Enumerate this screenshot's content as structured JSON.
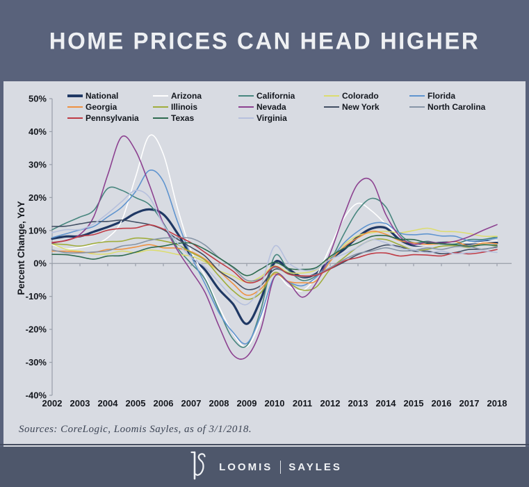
{
  "header": {
    "title": "HOME PRICES CAN HEAD HIGHER"
  },
  "colors": {
    "header_bg": "#59627b",
    "panel_bg": "#d8dbe2",
    "footer_bg": "#4e576b",
    "axis_line": "#989ea9",
    "tick_text": "#14171d",
    "title_text": "#eef0f3",
    "source_text": "#3c4454",
    "logo_text": "#f0f2f5"
  },
  "source_note": "Sources: CoreLogic, Loomis Sayles, as of 3/1/2018.",
  "footer": {
    "brand_left": "LOOMIS",
    "brand_right": "SAYLES",
    "logo": "ls-monogram"
  },
  "legend": {
    "columns": [
      [
        "National",
        "Georgia",
        "Pennsylvania"
      ],
      [
        "Arizona",
        "Illinois",
        "Texas"
      ],
      [
        "California",
        "Nevada",
        "Virginia"
      ],
      [
        "Colorado",
        "New York"
      ],
      [
        "Florida",
        "North Carolina"
      ]
    ]
  },
  "chart_data": {
    "type": "line",
    "title": "HOME PRICES CAN HEAD HIGHER",
    "xlabel": "",
    "ylabel": "Percent Change, YoY",
    "ylim": [
      -40,
      50
    ],
    "y_tick_labels": [
      "50%",
      "40%",
      "30%",
      "20%",
      "10%",
      "0%",
      "-10%",
      "-20%",
      "-30%",
      "-40%"
    ],
    "x_tick_labels": [
      "2002",
      "2003",
      "2004",
      "2005",
      "2006",
      "2007",
      "2008",
      "2009",
      "2010",
      "2011",
      "2012",
      "2013",
      "2014",
      "2015",
      "2016",
      "2017",
      "2018"
    ],
    "grid": false,
    "legend_position": "top",
    "x": [
      2002,
      2002.5,
      2003,
      2003.5,
      2004,
      2004.5,
      2005,
      2005.5,
      2006,
      2006.5,
      2007,
      2007.5,
      2008,
      2008.5,
      2009,
      2009.5,
      2010,
      2010.5,
      2011,
      2011.5,
      2012,
      2012.5,
      2013,
      2013.5,
      2014,
      2014.5,
      2015,
      2015.5,
      2016,
      2016.5,
      2017,
      2017.5,
      2018
    ],
    "series": [
      {
        "name": "National",
        "color": "#1f3864",
        "width": 3.2,
        "values": [
          7.5,
          8,
          8.5,
          9.5,
          11,
          13,
          15,
          16.5,
          15,
          9,
          2.5,
          -2,
          -8,
          -12,
          -18.5,
          -11,
          0.5,
          -2,
          -4,
          -3,
          1,
          4.5,
          8,
          10.5,
          11,
          7,
          5.5,
          6,
          6,
          6.5,
          6,
          6.5,
          6.5
        ]
      },
      {
        "name": "Arizona",
        "color": "#ffffff",
        "width": 1.6,
        "values": [
          5.5,
          4.5,
          5,
          5.5,
          8,
          13,
          26,
          39,
          33,
          17,
          4,
          -4,
          -13,
          -21,
          -25.5,
          -17,
          -4,
          -7,
          -8,
          -4,
          5,
          14,
          18,
          16,
          12,
          8,
          6,
          5.5,
          6,
          6.5,
          6,
          6.5,
          7
        ]
      },
      {
        "name": "California",
        "color": "#47867e",
        "width": 1.6,
        "values": [
          10,
          12.5,
          14,
          16,
          23,
          22,
          20,
          18,
          12,
          5,
          0,
          -5,
          -14,
          -23,
          -25,
          -14,
          2,
          -2,
          -5,
          -4,
          1,
          9,
          16,
          20,
          17,
          9,
          6.5,
          6.5,
          6,
          6,
          7,
          7.5,
          8
        ]
      },
      {
        "name": "Colorado",
        "color": "#dcdc6e",
        "width": 1.6,
        "values": [
          6,
          4.5,
          3.5,
          3,
          3,
          3.5,
          3.5,
          4,
          3.5,
          3,
          2,
          0.5,
          -2,
          -4,
          -5.5,
          -4,
          -1,
          -2.5,
          -3,
          -2,
          2,
          5.5,
          8.5,
          9.5,
          9.5,
          9.5,
          10,
          10.5,
          10,
          9.5,
          9,
          8.5,
          8
        ]
      },
      {
        "name": "Florida",
        "color": "#5f94cf",
        "width": 1.6,
        "values": [
          8,
          9,
          10,
          11.5,
          14,
          17,
          22,
          28,
          25,
          13,
          2,
          -6,
          -15,
          -21,
          -24,
          -16,
          -4,
          -5.5,
          -7,
          -4,
          1,
          6,
          10,
          12,
          12,
          9.5,
          8.5,
          9,
          8.5,
          8,
          7,
          7,
          7.5
        ]
      },
      {
        "name": "Georgia",
        "color": "#ee9140",
        "width": 1.6,
        "values": [
          4,
          3.5,
          3.5,
          3.5,
          4,
          4.5,
          5,
          5.5,
          5,
          4.5,
          3.5,
          1.5,
          -2.5,
          -6,
          -9.5,
          -8,
          -3,
          -5.5,
          -6,
          -5,
          0.5,
          5,
          8,
          9.5,
          9,
          7,
          6,
          6,
          6,
          6.5,
          5.5,
          6,
          6
        ]
      },
      {
        "name": "Illinois",
        "color": "#a0ad3c",
        "width": 1.6,
        "values": [
          6,
          5.5,
          5.5,
          6,
          6.5,
          7,
          7.5,
          7.5,
          7,
          5.5,
          3.5,
          1,
          -4,
          -8,
          -11,
          -9,
          -2.5,
          -6,
          -8,
          -7,
          -2,
          2,
          5,
          7,
          7.5,
          5.5,
          4,
          4.5,
          5,
          5.5,
          5,
          5.5,
          5.5
        ]
      },
      {
        "name": "Nevada",
        "color": "#8c4190",
        "width": 1.6,
        "values": [
          6,
          7,
          9,
          14,
          27,
          38.5,
          34,
          24,
          12,
          4,
          -2,
          -9,
          -19,
          -27.5,
          -28.5,
          -20,
          -4,
          -6,
          -10,
          -6,
          3,
          15,
          24,
          25,
          15,
          8,
          6,
          6.5,
          6,
          7,
          8,
          10,
          12
        ]
      },
      {
        "name": "New York",
        "color": "#414e63",
        "width": 1.6,
        "values": [
          11,
          11.5,
          12,
          12.5,
          13,
          13,
          12.5,
          12,
          10,
          7.5,
          5,
          2,
          -2,
          -5,
          -8,
          -6.5,
          -2,
          -3,
          -4,
          -3.5,
          -1.5,
          0.5,
          2.5,
          4.5,
          5.5,
          5,
          4,
          3.5,
          3,
          3.5,
          4,
          4.5,
          5
        ]
      },
      {
        "name": "North Carolina",
        "color": "#8694a6",
        "width": 1.6,
        "values": [
          4,
          3.5,
          3,
          3.5,
          4,
          5,
          6,
          7,
          7.5,
          8,
          7.5,
          5.5,
          2,
          -1.5,
          -5,
          -4.5,
          -1.5,
          -3,
          -4,
          -3.5,
          -1,
          1,
          3,
          4,
          4.5,
          4,
          4,
          4.5,
          4.5,
          5,
          5,
          4.5,
          5
        ]
      },
      {
        "name": "Pennsylvania",
        "color": "#bf3a44",
        "width": 1.6,
        "values": [
          6.5,
          7,
          8,
          9,
          10,
          10.5,
          11,
          11.5,
          10.5,
          8.5,
          6,
          3.5,
          0.5,
          -2.5,
          -5.5,
          -5,
          -1,
          -3,
          -4,
          -3.5,
          -1.5,
          0.5,
          2,
          3,
          3,
          2.5,
          2.5,
          2.5,
          2.5,
          3,
          3,
          3.5,
          4
        ]
      },
      {
        "name": "Texas",
        "color": "#2d6a4f",
        "width": 1.6,
        "values": [
          3,
          2.5,
          2,
          1.5,
          2,
          2.5,
          3.5,
          4.5,
          5.5,
          6,
          6,
          4.5,
          1.5,
          -1,
          -3.5,
          -2,
          0.5,
          -1.5,
          -2,
          -1,
          2,
          4.5,
          6.5,
          8,
          8.5,
          7.5,
          7,
          6.5,
          6,
          5.5,
          5.5,
          5.5,
          5.5
        ]
      },
      {
        "name": "Virginia",
        "color": "#b6c0dd",
        "width": 1.6,
        "values": [
          9.5,
          10,
          10.5,
          12,
          15,
          19,
          22,
          20,
          12,
          6,
          2,
          -1,
          -6,
          -10,
          -12.5,
          -7,
          5.5,
          0,
          -2,
          -1.5,
          1,
          3,
          5,
          7,
          6.5,
          4.5,
          4,
          3.5,
          3.5,
          3,
          3.5,
          3.5,
          3.5
        ]
      }
    ]
  }
}
